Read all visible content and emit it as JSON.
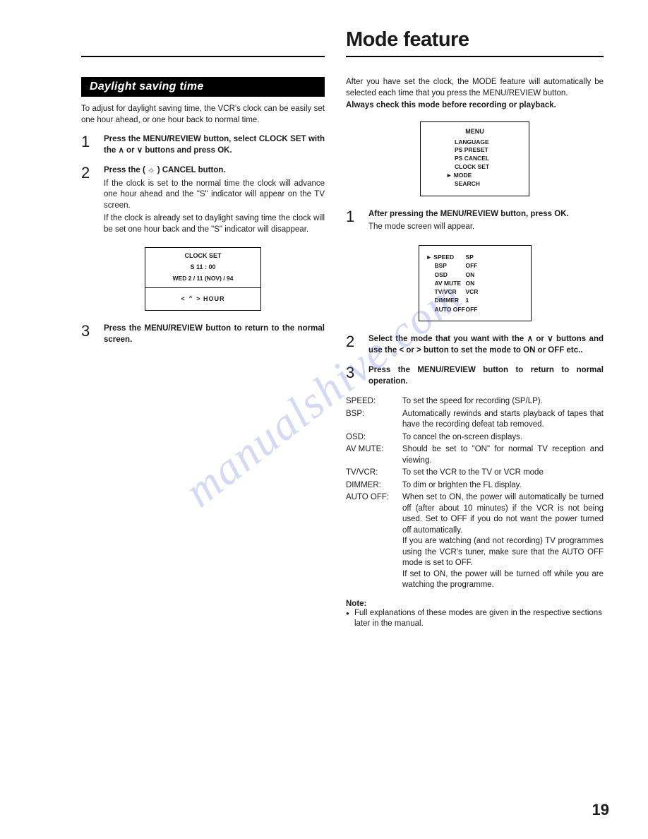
{
  "page_title": "Mode feature",
  "page_number": "19",
  "watermark": "manualshive.com",
  "left": {
    "section_title": "Daylight saving time",
    "intro": "To adjust for daylight saving time, the VCR's clock can be easily set one hour ahead, or one hour back to normal time.",
    "steps": [
      {
        "num": "1",
        "bold": "Press the MENU/REVIEW button, select CLOCK SET with the ∧ or ∨ buttons and press OK.",
        "body": []
      },
      {
        "num": "2",
        "bold": "Press the ( ☼ ) CANCEL button.",
        "body": [
          "If the clock is set to the normal time the clock will advance one hour ahead and the \"S\" indicator will appear on the TV screen.",
          "If the clock is already set to daylight saving time the clock will be set one hour back and the \"S\" indicator will disappear."
        ]
      },
      {
        "num": "3",
        "bold": "Press the MENU/REVIEW button to return to the normal screen.",
        "body": []
      }
    ],
    "clock_screen": {
      "title": "CLOCK SET",
      "line2": "S 11 : 00",
      "line3": "WED  2 / 11 (NOV) / 94",
      "line4": "<   ⌃   >  HOUR"
    }
  },
  "right": {
    "intro1": "After you have set the clock, the MODE feature will automatically be selected each time that you press the MENU/REVIEW button.",
    "intro_bold": "Always check this mode before recording or playback.",
    "menu_screen": {
      "title": "MENU",
      "items": [
        "LANGUAGE",
        "PS PRESET",
        "PS CANCEL",
        "CLOCK SET",
        "MODE",
        "SEARCH"
      ],
      "selected_index": 4
    },
    "steps": [
      {
        "num": "1",
        "bold": "After pressing the MENU/REVIEW button, press OK.",
        "body": [
          "The mode screen will appear."
        ]
      },
      {
        "num": "2",
        "bold": "Select the mode that you want with the ∧ or ∨ buttons and use the < or > button to set the mode to ON or OFF etc..",
        "body": []
      },
      {
        "num": "3",
        "bold": "Press the MENU/REVIEW button to return to normal operation.",
        "body": []
      }
    ],
    "mode_screen": {
      "rows": [
        {
          "l": "SPEED",
          "r": "SP",
          "sel": true
        },
        {
          "l": "BSP",
          "r": "OFF",
          "sel": false
        },
        {
          "l": "OSD",
          "r": "ON",
          "sel": false
        },
        {
          "l": "AV MUTE",
          "r": "ON",
          "sel": false
        },
        {
          "l": "TV/VCR",
          "r": "VCR",
          "sel": false
        },
        {
          "l": "DIMMER",
          "r": "1",
          "sel": false
        },
        {
          "l": "AUTO OFF",
          "r": "OFF",
          "sel": false
        }
      ]
    },
    "defs": [
      {
        "term": "SPEED:",
        "def": "To set the speed for recording (SP/LP)."
      },
      {
        "term": "BSP:",
        "def": "Automatically rewinds and starts playback of tapes that have the recording defeat tab removed."
      },
      {
        "term": "OSD:",
        "def": "To cancel the on-screen displays."
      },
      {
        "term": "AV MUTE:",
        "def": "Should be set to \"ON\" for normal TV reception and viewing."
      },
      {
        "term": "TV/VCR:",
        "def": "To set the VCR to the TV or VCR mode"
      },
      {
        "term": "DIMMER:",
        "def": "To dim or brighten the FL display."
      },
      {
        "term": "AUTO OFF:",
        "def": "When set to ON, the power will automatically be turned off (after about 10 minutes) if the VCR is not being used. Set to OFF if you do not want the power turned off automatically.\nIf you are watching (and not recording) TV programmes using the VCR's tuner, make sure that the AUTO OFF mode is set to OFF.\nIf set to ON, the power will be turned off while you are watching the programme."
      }
    ],
    "note_title": "Note:",
    "note_body": "Full explanations of these modes are given in the respective sections later in the manual."
  }
}
